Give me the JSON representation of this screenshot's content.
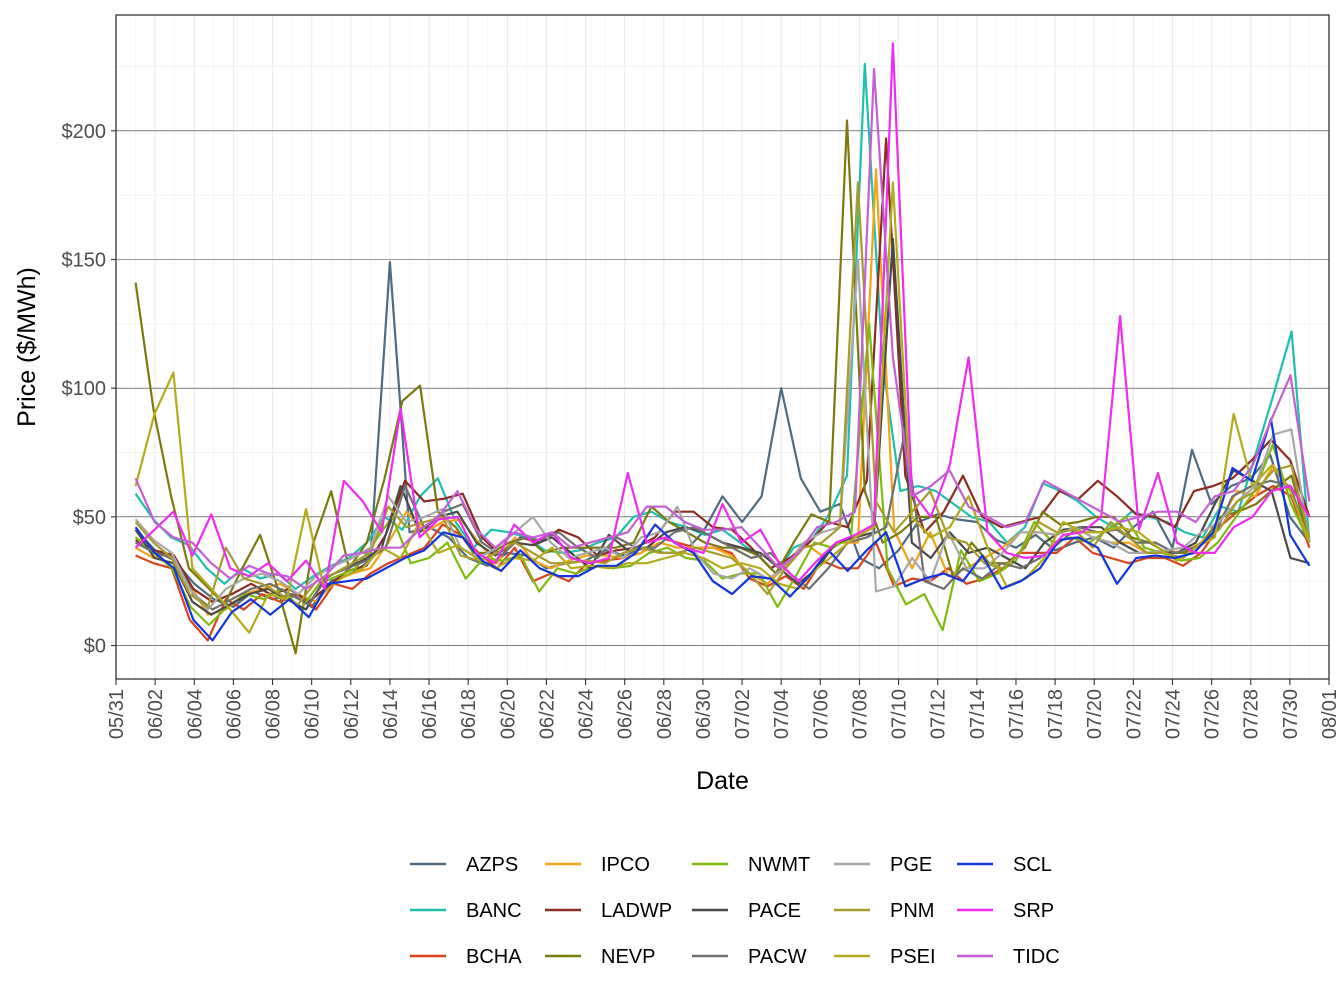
{
  "chart_data": {
    "type": "line",
    "xlabel": "Date",
    "ylabel": "Price ($/MWh)",
    "ylim": [
      -13,
      245
    ],
    "x_tick_labels": [
      "05/31",
      "06/02",
      "06/04",
      "06/06",
      "06/08",
      "06/10",
      "06/12",
      "06/14",
      "06/16",
      "06/18",
      "06/20",
      "06/22",
      "06/24",
      "06/26",
      "06/28",
      "06/30",
      "07/02",
      "07/04",
      "07/06",
      "07/08",
      "07/10",
      "07/12",
      "07/14",
      "07/16",
      "07/18",
      "07/20",
      "07/22",
      "07/24",
      "07/26",
      "07/28",
      "07/30",
      "08/01"
    ],
    "y_ticks": [
      0,
      50,
      100,
      150,
      200
    ],
    "y_tick_labels": [
      "$0",
      "$50",
      "$100",
      "$150",
      "$200"
    ],
    "x_start_day": 1,
    "x_end_day": 61,
    "legend_position": "bottom",
    "series": [
      {
        "name": "AZPS",
        "color": "#4e6b80",
        "values": [
          45,
          37,
          33,
          24,
          18,
          15,
          21,
          18,
          20,
          15,
          25,
          28,
          33,
          149,
          44,
          46,
          42,
          34,
          31,
          36,
          35,
          30,
          32,
          33,
          37,
          35,
          38,
          36,
          36,
          44,
          58,
          48,
          58,
          100,
          65,
          52,
          55,
          34,
          30,
          37,
          48,
          51,
          49,
          48,
          41,
          38,
          43,
          37,
          40,
          42,
          38,
          46,
          52,
          38,
          76,
          55,
          62,
          65,
          74,
          50,
          40
        ]
      },
      {
        "name": "BANC",
        "color": "#1fbfae",
        "values": [
          59,
          49,
          42,
          39,
          30,
          24,
          30,
          26,
          28,
          22,
          27,
          31,
          34,
          40,
          50,
          45,
          58,
          65,
          48,
          38,
          45,
          44,
          42,
          37,
          36,
          37,
          40,
          42,
          50,
          52,
          48,
          46,
          43,
          45,
          40,
          35,
          28,
          38,
          41,
          51,
          66,
          226,
          110,
          60,
          62,
          60,
          55,
          50,
          48,
          40,
          46,
          63,
          60,
          56,
          50,
          46,
          52,
          50,
          48,
          44,
          42,
          54,
          52,
          75,
          98,
          122,
          40
        ]
      },
      {
        "name": "BCHA",
        "color": "#d9441f",
        "values": [
          35,
          32,
          30,
          10,
          2,
          18,
          14,
          20,
          17,
          20,
          14,
          24,
          22,
          28,
          32,
          35,
          38,
          47,
          43,
          36,
          30,
          38,
          25,
          28,
          25,
          32,
          33,
          34,
          36,
          42,
          40,
          38,
          38,
          36,
          26,
          23,
          27,
          22,
          33,
          30,
          30,
          40,
          23,
          26,
          25,
          30,
          24,
          26,
          30,
          36,
          36,
          36,
          42,
          36,
          34,
          32,
          34,
          34,
          31,
          36,
          46,
          52,
          58,
          62,
          58,
          38
        ]
      },
      {
        "name": "IPCO",
        "color": "#f5a315",
        "values": [
          38,
          34,
          36,
          24,
          12,
          14,
          20,
          22,
          24,
          20,
          17,
          25,
          28,
          30,
          40,
          52,
          44,
          48,
          49,
          40,
          32,
          42,
          33,
          30,
          33,
          35,
          35,
          34,
          36,
          40,
          38,
          38,
          38,
          35,
          28,
          24,
          31,
          40,
          35,
          40,
          40,
          185,
          45,
          30,
          44,
          27,
          30,
          34,
          38,
          44,
          44,
          43,
          46,
          42,
          40,
          40,
          36,
          37,
          36,
          40,
          48,
          60,
          58,
          70,
          60,
          40
        ]
      },
      {
        "name": "LADWP",
        "color": "#8b2b22",
        "values": [
          41,
          37,
          35,
          22,
          17,
          20,
          24,
          20,
          22,
          17,
          23,
          29,
          31,
          43,
          64,
          56,
          57,
          59,
          42,
          35,
          42,
          40,
          45,
          42,
          35,
          37,
          38,
          42,
          52,
          52,
          46,
          45,
          38,
          30,
          34,
          40,
          48,
          46,
          64,
          197,
          66,
          44,
          52,
          66,
          50,
          46,
          48,
          50,
          60,
          57,
          64,
          58,
          51,
          50,
          46,
          60,
          62,
          65,
          72,
          80,
          72,
          50
        ]
      },
      {
        "name": "NEVP",
        "color": "#7b7a0e",
        "values": [
          141,
          92,
          58,
          30,
          23,
          16,
          30,
          43,
          22,
          -3,
          40,
          60,
          30,
          40,
          65,
          95,
          101,
          52,
          46,
          36,
          36,
          40,
          42,
          36,
          38,
          38,
          38,
          38,
          40,
          54,
          48,
          44,
          40,
          38,
          38,
          35,
          28,
          40,
          51,
          48,
          204,
          60,
          40,
          44,
          50,
          50,
          26,
          40,
          32,
          32,
          38,
          52,
          47,
          48,
          50,
          50,
          42,
          40,
          36,
          36,
          40,
          50,
          52,
          55,
          61,
          66,
          40
        ]
      },
      {
        "name": "NWMT",
        "color": "#7fba0f",
        "values": [
          42,
          36,
          30,
          15,
          8,
          15,
          20,
          18,
          22,
          14,
          24,
          27,
          30,
          40,
          50,
          32,
          34,
          40,
          26,
          34,
          33,
          35,
          21,
          30,
          28,
          31,
          30,
          31,
          36,
          38,
          34,
          33,
          26,
          28,
          28,
          15,
          27,
          40,
          38,
          42,
          125,
          30,
          16,
          20,
          6,
          37,
          25,
          28,
          33,
          48,
          40,
          42,
          40,
          45,
          50,
          38,
          36,
          33,
          34,
          40,
          50,
          60,
          78,
          55,
          40
        ]
      },
      {
        "name": "PACE",
        "color": "#4a4a4a",
        "values": [
          45,
          34,
          32,
          17,
          12,
          16,
          20,
          22,
          18,
          14,
          26,
          30,
          33,
          38,
          62,
          44,
          50,
          52,
          40,
          35,
          40,
          39,
          42,
          36,
          30,
          43,
          37,
          38,
          44,
          46,
          44,
          40,
          38,
          36,
          30,
          24,
          30,
          40,
          42,
          44,
          158,
          40,
          34,
          44,
          36,
          38,
          34,
          30,
          40,
          45,
          46,
          46,
          40,
          36,
          36,
          36,
          40,
          55,
          68,
          64,
          60,
          34,
          32
        ]
      },
      {
        "name": "PACW",
        "color": "#6f6f6f",
        "values": [
          40,
          36,
          34,
          20,
          14,
          18,
          22,
          24,
          20,
          16,
          27,
          30,
          33,
          38,
          62,
          46,
          52,
          55,
          40,
          35,
          42,
          41,
          44,
          38,
          34,
          42,
          38,
          38,
          44,
          46,
          42,
          38,
          34,
          36,
          28,
          22,
          30,
          40,
          42,
          46,
          84,
          25,
          22,
          30,
          26,
          32,
          30,
          34,
          40,
          46,
          44,
          45,
          40,
          40,
          36,
          38,
          42,
          58,
          62,
          64,
          62,
          40
        ]
      },
      {
        "name": "PGE",
        "color": "#a8a8a8",
        "values": [
          49,
          41,
          36,
          22,
          14,
          22,
          26,
          28,
          25,
          20,
          27,
          31,
          34,
          38,
          58,
          48,
          50,
          53,
          38,
          34,
          38,
          44,
          50,
          40,
          34,
          36,
          38,
          34,
          42,
          44,
          54,
          36,
          28,
          26,
          30,
          26,
          30,
          40,
          44,
          46,
          150,
          21,
          23,
          34,
          25,
          44,
          30,
          30,
          36,
          44,
          44,
          43,
          46,
          42,
          40,
          36,
          36,
          37,
          38,
          44,
          48,
          56,
          62,
          82,
          84,
          40
        ]
      },
      {
        "name": "PNM",
        "color": "#a89b2d",
        "values": [
          48,
          40,
          34,
          20,
          15,
          38,
          26,
          24,
          20,
          16,
          25,
          28,
          32,
          36,
          54,
          46,
          48,
          50,
          35,
          33,
          36,
          40,
          36,
          32,
          32,
          33,
          32,
          36,
          38,
          36,
          36,
          38,
          36,
          34,
          28,
          20,
          30,
          38,
          40,
          46,
          180,
          56,
          44,
          52,
          60,
          42,
          40,
          32,
          30,
          36,
          48,
          44,
          45,
          38,
          48,
          42,
          36,
          36,
          34,
          40,
          45,
          56,
          60,
          68,
          70,
          42
        ]
      },
      {
        "name": "PSEI",
        "color": "#b3ab1c",
        "values": [
          62,
          90,
          106,
          30,
          22,
          14,
          5,
          20,
          18,
          53,
          21,
          27,
          30,
          38,
          34,
          48,
          36,
          39,
          34,
          30,
          34,
          33,
          38,
          30,
          31,
          30,
          32,
          32,
          34,
          36,
          34,
          30,
          32,
          30,
          24,
          22,
          30,
          36,
          42,
          46,
          180,
          50,
          42,
          46,
          58,
          38,
          23,
          26,
          34,
          48,
          44,
          44,
          46,
          44,
          38,
          33,
          38,
          42,
          90,
          62,
          70,
          60,
          40
        ]
      },
      {
        "name": "SCL",
        "color": "#1236db",
        "values": [
          46,
          36,
          30,
          10,
          2,
          13,
          18,
          12,
          18,
          11,
          24,
          25,
          26,
          30,
          34,
          37,
          44,
          42,
          33,
          29,
          37,
          30,
          27,
          27,
          31,
          31,
          36,
          47,
          40,
          36,
          25,
          20,
          27,
          26,
          19,
          27,
          37,
          29,
          37,
          44,
          23,
          26,
          28,
          25,
          35,
          22,
          25,
          30,
          41,
          42,
          38,
          24,
          34,
          35,
          34,
          36,
          44,
          69,
          64,
          88,
          43,
          31
        ]
      },
      {
        "name": "SRP",
        "color": "#f02cf0",
        "values": [
          38,
          45,
          52,
          35,
          51,
          30,
          27,
          32,
          25,
          33,
          22,
          64,
          56,
          44,
          92,
          42,
          49,
          50,
          36,
          32,
          47,
          40,
          44,
          34,
          32,
          34,
          67,
          40,
          42,
          38,
          36,
          55,
          40,
          45,
          32,
          25,
          33,
          40,
          43,
          47,
          234,
          60,
          50,
          70,
          112,
          44,
          36,
          34,
          35,
          43,
          44,
          50,
          128,
          45,
          67,
          40,
          36,
          36,
          46,
          50,
          60,
          62,
          50
        ]
      },
      {
        "name": "TIDC",
        "color": "#c45fd4",
        "values": [
          65,
          48,
          42,
          40,
          32,
          26,
          31,
          28,
          27,
          22,
          27,
          35,
          36,
          38,
          38,
          45,
          50,
          60,
          45,
          38,
          44,
          42,
          44,
          38,
          40,
          42,
          44,
          54,
          54,
          48,
          45,
          45,
          46,
          38,
          30,
          36,
          46,
          48,
          52,
          224,
          112,
          58,
          62,
          68,
          54,
          50,
          46,
          48,
          64,
          60,
          56,
          52,
          48,
          50,
          52,
          52,
          48,
          58,
          60,
          70,
          88,
          105,
          56
        ]
      }
    ]
  }
}
